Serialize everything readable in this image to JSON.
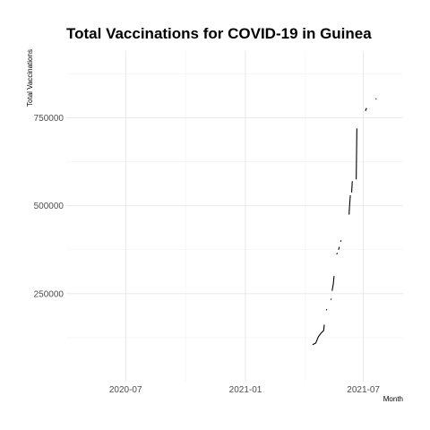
{
  "chart_data": {
    "type": "line",
    "title": "Total Vaccinations for COVID-19 in Guinea",
    "xlabel": "Month",
    "ylabel": "Total Vaccinations",
    "x_ticks": [
      {
        "date": "2020-07-01",
        "label": "2020-07"
      },
      {
        "date": "2021-01-01",
        "label": "2021-01"
      },
      {
        "date": "2021-07-01",
        "label": "2021-07"
      }
    ],
    "y_ticks": [
      {
        "value": 250000,
        "label": "250000"
      },
      {
        "value": 500000,
        "label": "500000"
      },
      {
        "value": 750000,
        "label": "750000"
      }
    ],
    "xlim": [
      "2020-04-01",
      "2021-08-31"
    ],
    "ylim": [
      0,
      940000
    ],
    "grid": true,
    "series": [
      {
        "name": "Total Vaccinations",
        "segments": [
          [
            [
              "2021-04-14",
              105000
            ],
            [
              "2021-04-19",
              110000
            ],
            [
              "2021-04-23",
              128000
            ],
            [
              "2021-04-27",
              138000
            ],
            [
              "2021-05-01",
              145000
            ],
            [
              "2021-05-02",
              162000
            ]
          ],
          [
            [
              "2021-05-05",
              203000
            ],
            [
              "2021-05-06",
              206000
            ]
          ],
          [
            [
              "2021-05-12",
              233000
            ],
            [
              "2021-05-13",
              236000
            ]
          ],
          [
            [
              "2021-05-14",
              258000
            ],
            [
              "2021-05-16",
              280000
            ],
            [
              "2021-05-17",
              300000
            ]
          ],
          [
            [
              "2021-05-21",
              362000
            ],
            [
              "2021-05-22",
              366000
            ]
          ],
          [
            [
              "2021-05-24",
              375000
            ],
            [
              "2021-05-25",
              383000
            ]
          ],
          [
            [
              "2021-05-27",
              398000
            ],
            [
              "2021-05-28",
              402000
            ]
          ],
          [
            [
              "2021-06-09",
              475000
            ],
            [
              "2021-06-10",
              505000
            ],
            [
              "2021-06-11",
              530000
            ]
          ],
          [
            [
              "2021-06-13",
              538000
            ],
            [
              "2021-06-14",
              570000
            ]
          ],
          [
            [
              "2021-06-20",
              575000
            ],
            [
              "2021-06-21",
              720000
            ]
          ],
          [
            [
              "2021-07-04",
              770000
            ],
            [
              "2021-07-06",
              778000
            ]
          ],
          [
            [
              "2021-07-20",
              803000
            ],
            [
              "2021-07-21",
              805000
            ]
          ]
        ]
      }
    ]
  }
}
